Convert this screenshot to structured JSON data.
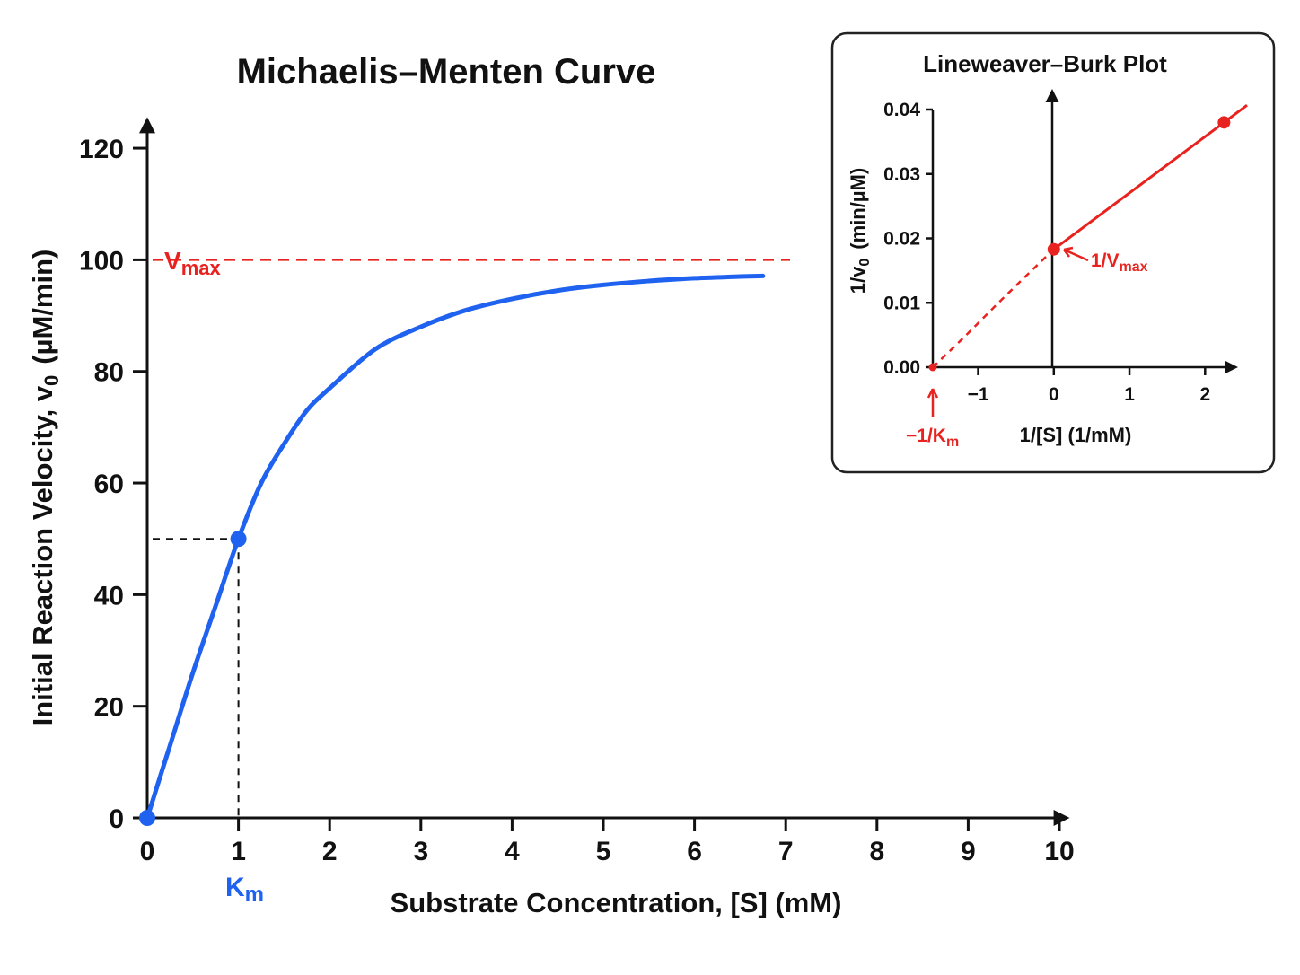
{
  "colors": {
    "curve": "#1f62f0",
    "accent": "#e8231f",
    "axis": "#111111",
    "inset_border": "#222222"
  },
  "chart_data": [
    {
      "type": "line",
      "title": "Michaelis–Menten Curve",
      "xlabel": "Substrate Concentration, [S] (mM)",
      "ylabel": "Initial Reaction Velocity, v",
      "ylabel_sub": "0",
      "ylabel_unit": "(µM/min)",
      "xlim": [
        0,
        10
      ],
      "ylim": [
        0,
        125
      ],
      "xticks": [
        "0",
        "1",
        "2",
        "3",
        "4",
        "5",
        "6",
        "7",
        "8",
        "9",
        "10"
      ],
      "yticks": [
        "0",
        "20",
        "40",
        "60",
        "80",
        "100",
        "120"
      ],
      "grid": false,
      "series": [
        {
          "x": [
            0,
            0.25,
            0.5,
            0.75,
            1.0,
            1.25,
            1.5,
            1.75,
            2.0,
            2.5,
            3.0,
            3.5,
            4.0,
            4.5,
            5.0,
            5.5,
            6.0,
            6.5,
            6.75
          ],
          "y": [
            0,
            13,
            26,
            38,
            50,
            60,
            67,
            73,
            77,
            84,
            88,
            91,
            93,
            94.5,
            95.5,
            96.2,
            96.7,
            97,
            97.1
          ]
        }
      ],
      "markers": [
        {
          "x": 0,
          "y": 0
        },
        {
          "x": 1.0,
          "y": 50
        }
      ],
      "vmax": {
        "value": 100,
        "label": "V",
        "label_sub": "max"
      },
      "km": {
        "x": 1.0,
        "y": 50,
        "label": "K",
        "label_sub": "m"
      }
    },
    {
      "type": "line",
      "title": "Lineweaver–Burk Plot",
      "xlabel": "1/[S] (1/mM)",
      "ylabel": "1/v",
      "ylabel_sub": "0",
      "ylabel_unit": "(min/µM)",
      "xlim": [
        -1.6,
        2.4
      ],
      "ylim": [
        0,
        0.04
      ],
      "xticks": [
        "−1",
        "0",
        "1",
        "2"
      ],
      "yticks": [
        "0.00",
        "0.01",
        "0.02",
        "0.03",
        "0.04"
      ],
      "series": [
        {
          "style": "solid",
          "x": [
            0,
            2.25
          ],
          "y": [
            0.0183,
            0.038
          ]
        },
        {
          "style": "dashed",
          "x": [
            -1.6,
            -1.2,
            -0.8,
            -0.4,
            0
          ],
          "y": [
            0,
            0.0045,
            0.0092,
            0.0138,
            0.0183
          ]
        }
      ],
      "points": [
        {
          "x": -1.6,
          "y": 0
        },
        {
          "x": 0,
          "y": 0.0183
        },
        {
          "x": 2.25,
          "y": 0.038
        }
      ],
      "intercept_labels": {
        "y_intercept": {
          "label": "1/V",
          "label_sub": "max"
        },
        "x_intercept": {
          "label": "−1/K",
          "label_sub": "m"
        }
      }
    }
  ]
}
